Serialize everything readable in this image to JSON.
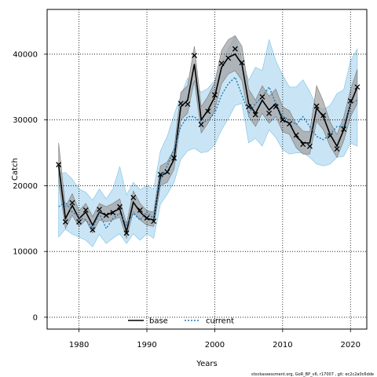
{
  "chart_data": {
    "type": "line",
    "xlabel": "Years",
    "ylabel": "Catch",
    "xlim": [
      1975.3,
      2022.4
    ],
    "ylim": [
      -1800,
      46800
    ],
    "xticks": [
      1980,
      1990,
      2000,
      2010,
      2020
    ],
    "yticks": [
      0,
      10000,
      20000,
      30000,
      40000
    ],
    "grid": true,
    "legend_position": "bottom-center",
    "footer": "stockassessment.org, GoR_BP_v6, r17007 , git: ec2c2a0c6dde",
    "x": [
      1977,
      1978,
      1979,
      1980,
      1981,
      1982,
      1983,
      1984,
      1985,
      1986,
      1987,
      1988,
      1989,
      1990,
      1991,
      1992,
      1993,
      1994,
      1995,
      1996,
      1997,
      1998,
      1999,
      2000,
      2001,
      2002,
      2003,
      2004,
      2005,
      2006,
      2007,
      2008,
      2009,
      2010,
      2011,
      2012,
      2013,
      2014,
      2015,
      2016,
      2017,
      2018,
      2019,
      2020,
      2021
    ],
    "observed": {
      "marker": "x",
      "values": [
        23200,
        14500,
        17400,
        14500,
        16300,
        13300,
        16400,
        15500,
        15900,
        16800,
        12800,
        18200,
        16300,
        15100,
        14600,
        21700,
        22100,
        24200,
        32500,
        32400,
        39800,
        29300,
        31300,
        33800,
        38600,
        39400,
        40800,
        38700,
        32000,
        30800,
        33500,
        31000,
        32000,
        30000,
        29400,
        27700,
        26300,
        26000,
        32100,
        30700,
        27600,
        25600,
        28600,
        32900,
        35000
      ]
    },
    "series": [
      {
        "name": "base",
        "color": "#000000",
        "style": "solid",
        "band_color": "#a0a0a0",
        "values": [
          23000,
          15000,
          17000,
          15000,
          16000,
          14000,
          16000,
          15500,
          16000,
          16500,
          13000,
          17500,
          16000,
          15000,
          14800,
          21500,
          22000,
          24000,
          32000,
          33000,
          38500,
          30000,
          31500,
          33500,
          38000,
          39500,
          40000,
          38500,
          32500,
          31000,
          33000,
          31500,
          32500,
          30000,
          29500,
          27500,
          26500,
          26500,
          31800,
          30500,
          27800,
          26000,
          28500,
          32500,
          35000
        ],
        "lower": [
          20500,
          13500,
          15500,
          13800,
          14800,
          12800,
          14800,
          14500,
          14800,
          15200,
          12000,
          16000,
          14800,
          14000,
          13800,
          20000,
          20500,
          22500,
          30000,
          31000,
          36000,
          28000,
          29500,
          31500,
          35500,
          37000,
          37500,
          36000,
          30500,
          29000,
          31000,
          29500,
          30500,
          28200,
          27800,
          25800,
          24800,
          24800,
          29800,
          28500,
          26000,
          24300,
          26800,
          30500,
          32500
        ],
        "upper": [
          26500,
          16800,
          18800,
          16200,
          17300,
          15300,
          17300,
          16800,
          17300,
          18000,
          14200,
          19200,
          17300,
          16200,
          16000,
          23000,
          23600,
          25600,
          34200,
          35200,
          41200,
          32000,
          33600,
          35700,
          40600,
          42200,
          42800,
          41200,
          34700,
          33000,
          35200,
          33600,
          34700,
          32000,
          31400,
          29400,
          28300,
          28200,
          35200,
          32800,
          29700,
          27800,
          30400,
          34600,
          37700
        ]
      },
      {
        "name": "current",
        "color": "#1f77b4",
        "style": "dotted",
        "band_color": "#bfe0f3",
        "values": [
          16800,
          17500,
          16000,
          15200,
          14800,
          13500,
          15800,
          13500,
          15000,
          15800,
          14000,
          15800,
          14800,
          16000,
          15000,
          21000,
          23000,
          25500,
          29000,
          30500,
          30500,
          29500,
          30000,
          31000,
          33800,
          35500,
          36500,
          33800,
          31000,
          32500,
          33500,
          35000,
          32500,
          30500,
          30000,
          29300,
          30500,
          29000,
          27500,
          27000,
          27800,
          29000,
          29000,
          32500,
          33000
        ],
        "lower": [
          12200,
          13400,
          12600,
          12200,
          11700,
          10700,
          12600,
          11200,
          12000,
          12700,
          11200,
          12700,
          11700,
          12700,
          12000,
          17200,
          18700,
          20500,
          24000,
          25300,
          25700,
          25000,
          25200,
          26200,
          28500,
          30200,
          32200,
          32500,
          26500,
          27200,
          26000,
          28500,
          27300,
          25500,
          24800,
          25000,
          25000,
          24300,
          23300,
          23000,
          23300,
          24300,
          24500,
          26500,
          26000
        ],
        "upper": [
          21800,
          22000,
          21000,
          19500,
          19000,
          17800,
          19500,
          18000,
          19500,
          22900,
          18600,
          20500,
          19400,
          20000,
          19500,
          25300,
          27500,
          30800,
          33600,
          36400,
          35400,
          34200,
          34800,
          36000,
          39000,
          40800,
          42800,
          39000,
          36000,
          38000,
          37500,
          42200,
          39000,
          36800,
          35000,
          35000,
          36100,
          34300,
          32100,
          31600,
          32200,
          34000,
          34600,
          39000,
          40800
        ]
      }
    ]
  }
}
